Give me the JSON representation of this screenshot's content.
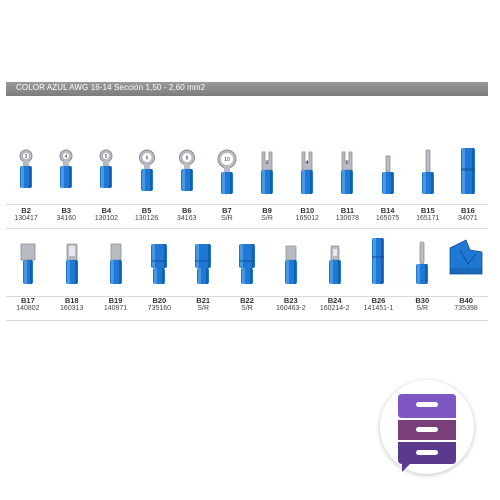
{
  "header": {
    "title": "COLOR AZUL AWG 16-14 Sección 1,50 - 2,60 mm2"
  },
  "colors": {
    "terminal_blue": "#1f78d1",
    "metal": "#b8bcc2",
    "header_bar": "#8a8a8a",
    "badge_purple": "#5b3a8e"
  },
  "row1": [
    {
      "code": "B2",
      "ref": "130417",
      "type": "ring",
      "label": "3"
    },
    {
      "code": "B3",
      "ref": "34160",
      "type": "ring",
      "label": "4"
    },
    {
      "code": "B4",
      "ref": "130102",
      "type": "ring",
      "label": "5"
    },
    {
      "code": "B5",
      "ref": "130126",
      "type": "ring",
      "label": "6"
    },
    {
      "code": "B6",
      "ref": "34163",
      "type": "ring",
      "label": "8"
    },
    {
      "code": "B7",
      "ref": "S/R",
      "type": "ring",
      "label": "10"
    },
    {
      "code": "B9",
      "ref": "S/R",
      "type": "fork",
      "label": "3"
    },
    {
      "code": "B10",
      "ref": "165012",
      "type": "fork",
      "label": "4"
    },
    {
      "code": "B11",
      "ref": "130678",
      "type": "fork",
      "label": "5"
    },
    {
      "code": "B14",
      "ref": "165075",
      "type": "blade",
      "label": ""
    },
    {
      "code": "B15",
      "ref": "165171",
      "type": "pin",
      "label": ""
    },
    {
      "code": "B16",
      "ref": "34071",
      "type": "butt",
      "label": ""
    }
  ],
  "row2": [
    {
      "code": "B17",
      "ref": "140802",
      "type": "flag",
      "label": ""
    },
    {
      "code": "B18",
      "ref": "160313",
      "type": "female",
      "label": ""
    },
    {
      "code": "B19",
      "ref": "140971",
      "type": "spade",
      "label": ""
    },
    {
      "code": "B20",
      "ref": "735160",
      "type": "female-insulated",
      "label": ""
    },
    {
      "code": "B21",
      "ref": "S/R",
      "type": "female-insulated",
      "label": ""
    },
    {
      "code": "B22",
      "ref": "S/R",
      "type": "female-insulated",
      "label": ""
    },
    {
      "code": "B23",
      "ref": "160463-2",
      "type": "female-flat",
      "label": ""
    },
    {
      "code": "B24",
      "ref": "160214-2",
      "type": "male",
      "label": ""
    },
    {
      "code": "B26",
      "ref": "141451-1",
      "type": "bullet",
      "label": ""
    },
    {
      "code": "B30",
      "ref": "S/R",
      "type": "pin-round",
      "label": ""
    },
    {
      "code": "B40",
      "ref": "735398",
      "type": "splice",
      "label": ""
    }
  ]
}
